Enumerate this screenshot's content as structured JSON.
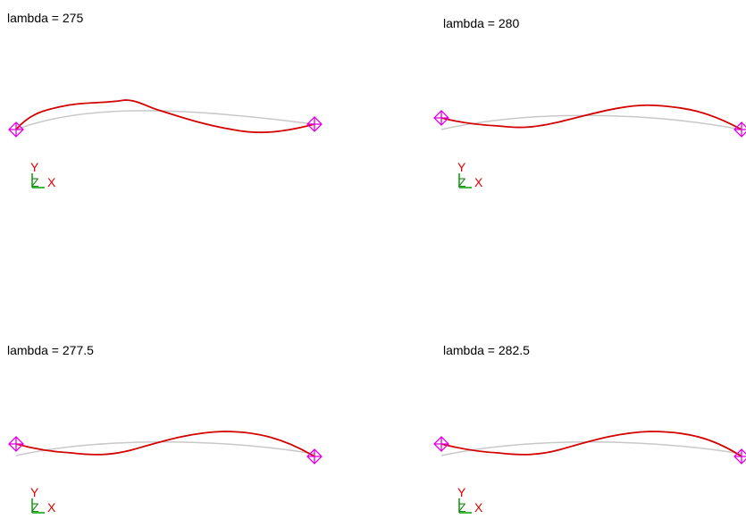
{
  "panels": [
    {
      "id": "p1",
      "title": "lambda = 275"
    },
    {
      "id": "p2",
      "title": "lambda = 280"
    },
    {
      "id": "p3",
      "title": "lambda = 277.5"
    },
    {
      "id": "p4",
      "title": "lambda = 282.5"
    }
  ],
  "axis_triad": {
    "y_label": "Y",
    "z_label": "Z",
    "x_label": "X"
  },
  "colors": {
    "deformed_curve": "#d40000",
    "undeformed_curve": "#c8c8c8",
    "support_marker": "#e000e0",
    "axis_y": "#e00000",
    "axis_x": "#e00000",
    "axis_z": "#208020",
    "axis_line_y": "#00a000",
    "axis_line_x": "#00a000"
  }
}
